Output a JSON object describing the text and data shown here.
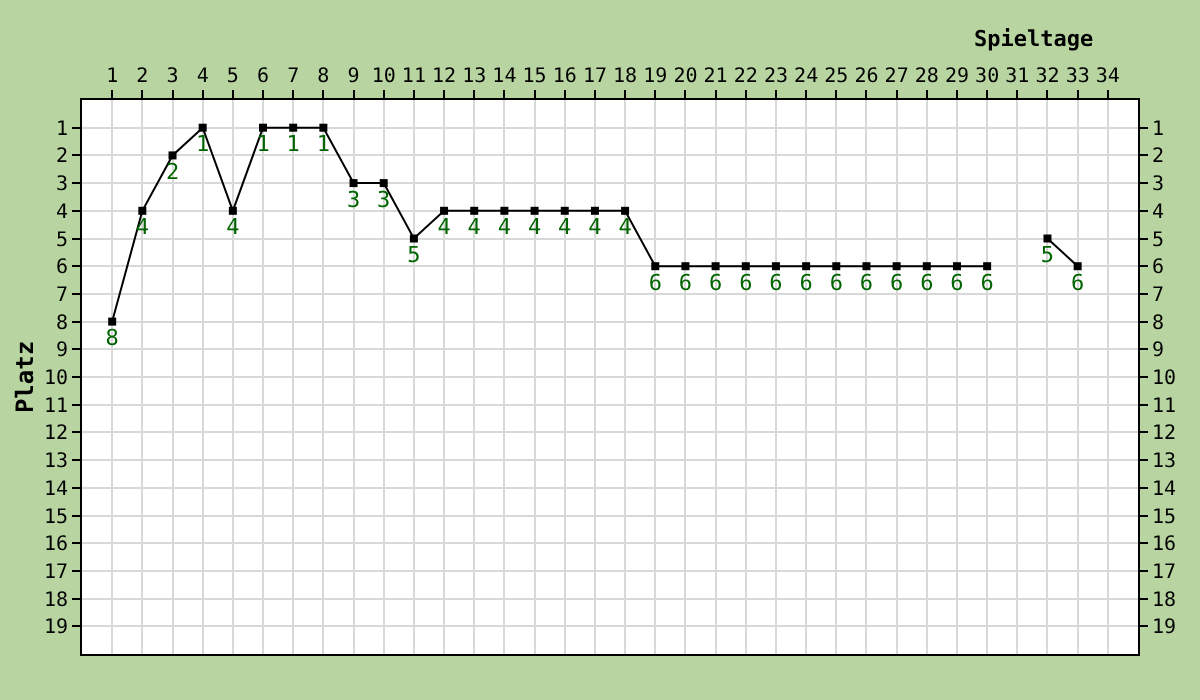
{
  "chart_data": {
    "type": "line",
    "xlabel": "Spieltage",
    "ylabel": "Platz",
    "x": [
      1,
      2,
      3,
      4,
      5,
      6,
      7,
      8,
      9,
      10,
      11,
      12,
      13,
      14,
      15,
      16,
      17,
      18,
      19,
      20,
      21,
      22,
      23,
      24,
      25,
      26,
      27,
      28,
      29,
      30,
      31,
      32,
      33
    ],
    "series": [
      {
        "color": "#000000",
        "values": [
          8,
          4,
          2,
          1,
          4,
          1,
          1,
          1,
          3,
          3,
          5,
          4,
          4,
          4,
          4,
          4,
          4,
          4,
          6,
          6,
          6,
          6,
          6,
          6,
          6,
          6,
          6,
          6,
          6,
          6,
          null,
          5,
          6
        ]
      }
    ],
    "xlim": [
      0,
      35
    ],
    "xticks": [
      1,
      2,
      3,
      4,
      5,
      6,
      7,
      8,
      9,
      10,
      11,
      12,
      13,
      14,
      15,
      16,
      17,
      18,
      19,
      20,
      21,
      22,
      23,
      24,
      25,
      26,
      27,
      28,
      29,
      30,
      31,
      32,
      33,
      34
    ],
    "ylim": [
      20,
      0
    ],
    "yticks": [
      1,
      2,
      3,
      4,
      5,
      6,
      7,
      8,
      9,
      10,
      11,
      12,
      13,
      14,
      15,
      16,
      17,
      18,
      19
    ],
    "y2lim": [
      20,
      0
    ],
    "y2ticks": [
      1,
      2,
      3,
      4,
      5,
      6,
      7,
      8,
      9,
      10,
      11,
      12,
      13,
      14,
      15,
      16,
      17,
      18,
      19
    ],
    "data_labels": true,
    "grid": true,
    "marker": "square",
    "line_style": "solid",
    "legend": false
  }
}
